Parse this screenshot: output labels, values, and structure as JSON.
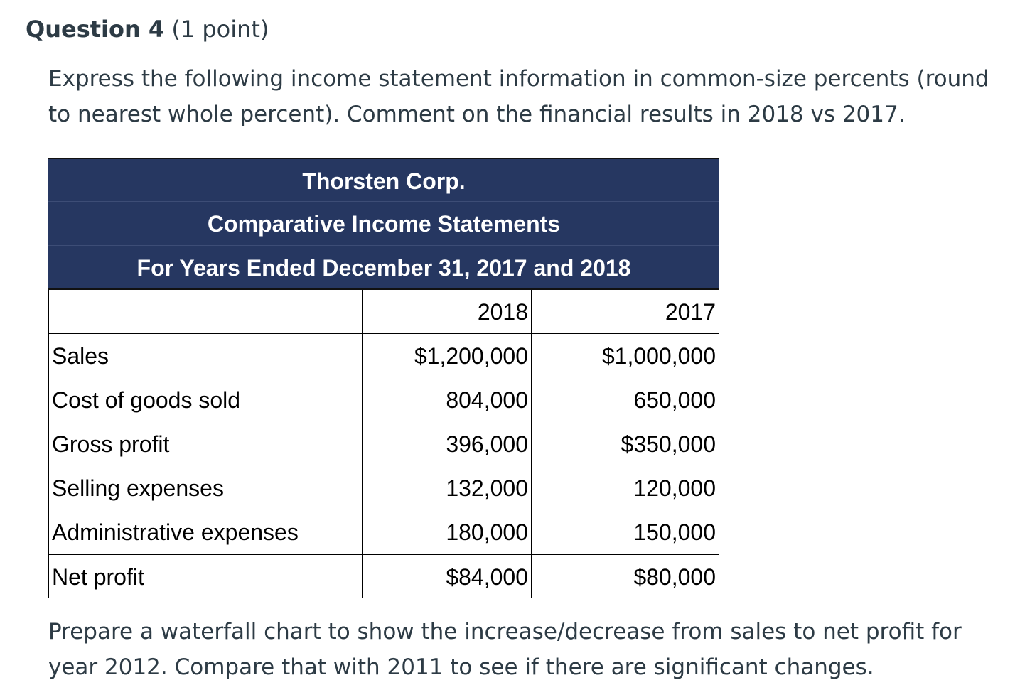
{
  "question": {
    "title": "Question 4",
    "points": " (1 point)"
  },
  "prompt_top": "Express the following income statement information in common-size percents (round to nearest whole percent). Comment on the financial results in 2018 vs 2017.",
  "statement": {
    "company": "Thorsten Corp.",
    "title": "Comparative Income Statements",
    "period": "For Years Ended December 31, 2017 and 2018",
    "columns": [
      "",
      "2018",
      "2017"
    ],
    "rows": [
      {
        "label": "Sales",
        "y2018": "$1,200,000",
        "y2017": "$1,000,000"
      },
      {
        "label": "Cost of goods sold",
        "y2018": "804,000",
        "y2017": "650,000"
      },
      {
        "label": "Gross profit",
        "y2018": "396,000",
        "y2017": "$350,000"
      },
      {
        "label": "Selling expenses",
        "y2018": "132,000",
        "y2017": "120,000"
      },
      {
        "label": "Administrative expenses",
        "y2018": "180,000",
        "y2017": "150,000"
      },
      {
        "label": "Net profit",
        "y2018": "$84,000",
        "y2017": "$80,000"
      }
    ]
  },
  "prompt_bottom": "Prepare a waterfall chart to show the increase/decrease from sales to net profit for year 2012.  Compare that with 2011 to see if there are significant changes.",
  "colors": {
    "header_bg": "#263761",
    "header_text": "#ffffff",
    "body_text": "#2d3b45"
  }
}
